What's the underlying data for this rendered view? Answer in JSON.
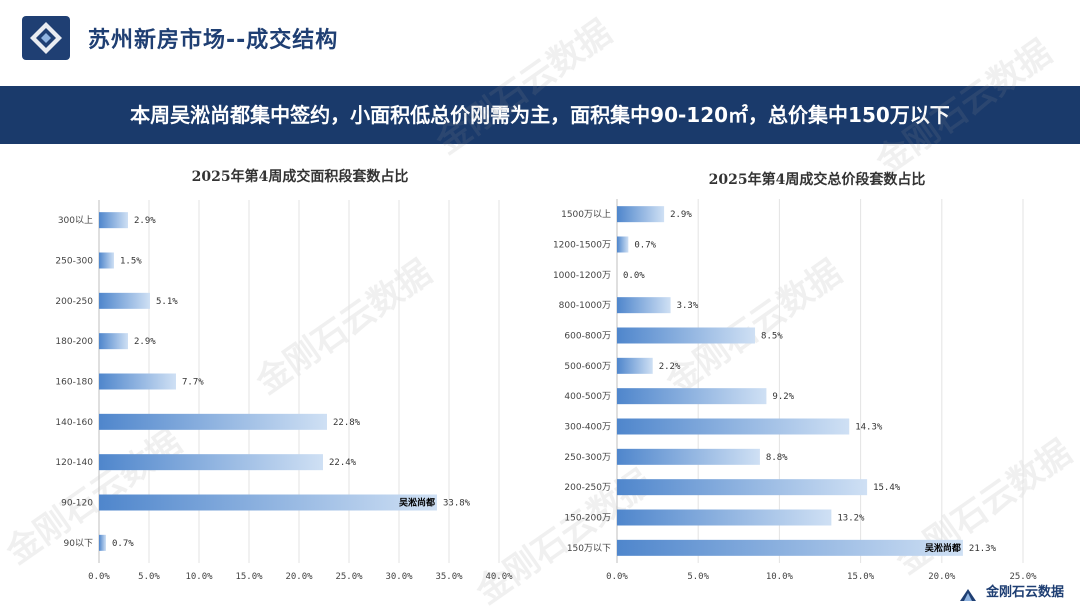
{
  "header": {
    "title": "苏州新房市场--成交结构"
  },
  "banner": {
    "text": "本周吴淞尚都集中签约，小面积低总价刚需为主，面积集中90-120㎡，总价集中150万以下"
  },
  "watermark": "金刚石云数据",
  "footer": {
    "brand": "金刚石云数据"
  },
  "colors": {
    "navy": "#1a3a6b",
    "bar": "#5b8fce",
    "bar_light": "#d4e3f5"
  },
  "chart_data": [
    {
      "type": "bar",
      "orientation": "horizontal",
      "title": "2025年第4周成交面积段套数占比",
      "categories": [
        "300以上",
        "250-300",
        "200-250",
        "180-200",
        "160-180",
        "140-160",
        "120-140",
        "90-120",
        "90以下"
      ],
      "values": [
        2.9,
        1.5,
        5.1,
        2.9,
        7.7,
        22.8,
        22.4,
        33.8,
        0.7
      ],
      "value_labels": [
        "2.9%",
        "1.5%",
        "5.1%",
        "2.9%",
        "7.7%",
        "22.8%",
        "22.4%",
        "33.8%",
        "0.7%"
      ],
      "xlim": [
        0,
        40
      ],
      "ticks": [
        0,
        5,
        10,
        15,
        20,
        25,
        30,
        35,
        40
      ],
      "tick_labels": [
        "0.0%",
        "5.0%",
        "10.0%",
        "15.0%",
        "20.0%",
        "25.0%",
        "30.0%",
        "35.0%",
        "40.0%"
      ],
      "annotation": {
        "category": "90-120",
        "text": "吴淞尚都"
      }
    },
    {
      "type": "bar",
      "orientation": "horizontal",
      "title": "2025年第4周成交总价段套数占比",
      "categories": [
        "1500万以上",
        "1200-1500万",
        "1000-1200万",
        "800-1000万",
        "600-800万",
        "500-600万",
        "400-500万",
        "300-400万",
        "250-300万",
        "200-250万",
        "150-200万",
        "150万以下"
      ],
      "values": [
        2.9,
        0.7,
        0.0,
        3.3,
        8.5,
        2.2,
        9.2,
        14.3,
        8.8,
        15.4,
        13.2,
        21.3
      ],
      "value_labels": [
        "2.9%",
        "0.7%",
        "0.0%",
        "3.3%",
        "8.5%",
        "2.2%",
        "9.2%",
        "14.3%",
        "8.8%",
        "15.4%",
        "13.2%",
        "21.3%"
      ],
      "xlim": [
        0,
        25
      ],
      "ticks": [
        0,
        5,
        10,
        15,
        20,
        25
      ],
      "tick_labels": [
        "0.0%",
        "5.0%",
        "10.0%",
        "15.0%",
        "20.0%",
        "25.0%"
      ],
      "annotation": {
        "category": "150万以下",
        "text": "吴淞尚都"
      }
    }
  ]
}
